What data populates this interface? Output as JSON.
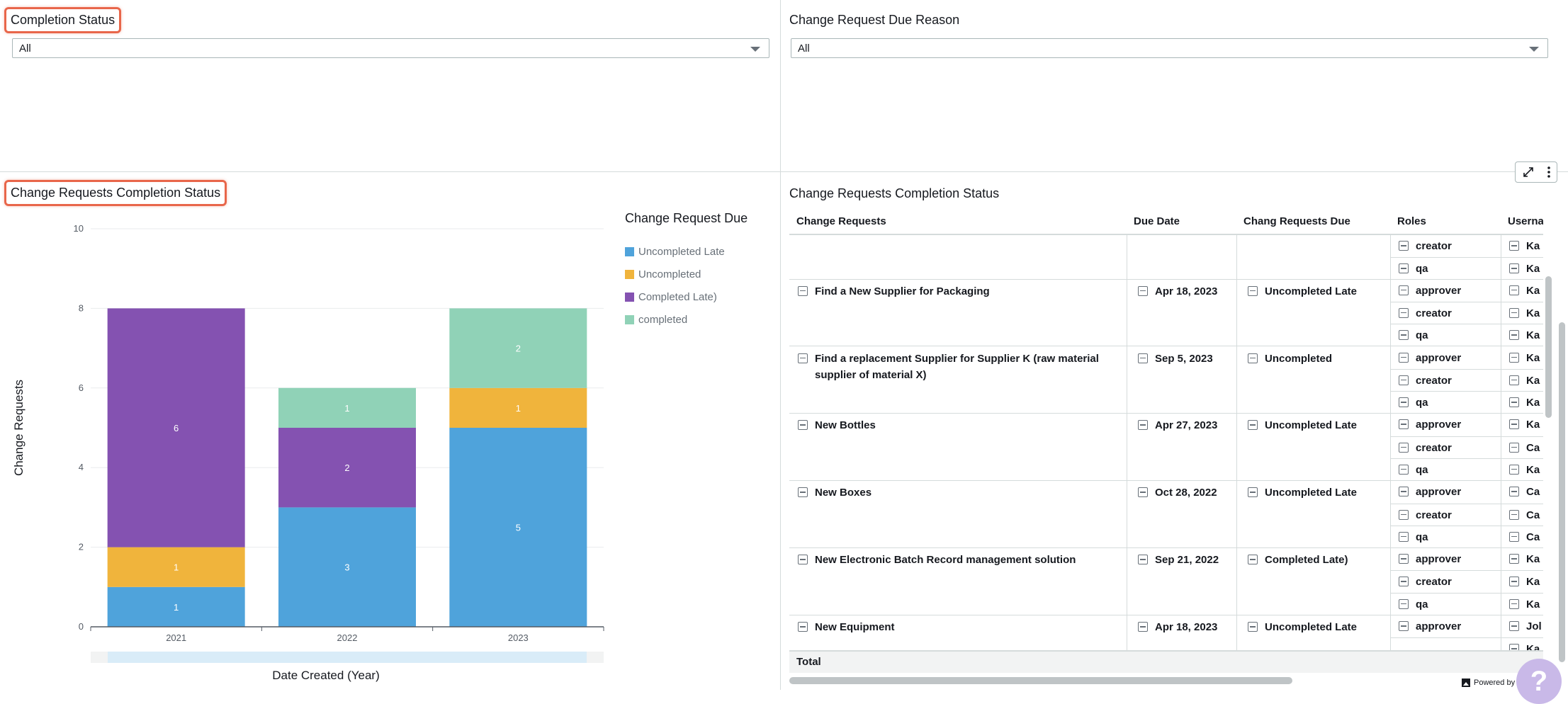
{
  "filters": {
    "completion_status": {
      "title": "Completion Status",
      "value": "All"
    },
    "due_reason": {
      "title": "Change Request Due Reason",
      "value": "All"
    }
  },
  "chart_panel": {
    "title": "Change Requests Completion Status"
  },
  "chart_data": {
    "type": "bar",
    "stacked": true,
    "categories": [
      "2021",
      "2022",
      "2023"
    ],
    "series": [
      {
        "name": "Uncompleted Late",
        "color": "#4fa3db",
        "values": [
          1,
          3,
          5
        ]
      },
      {
        "name": "Uncompleted",
        "color": "#f0b43c",
        "values": [
          1,
          0,
          1
        ]
      },
      {
        "name": "Completed Late)",
        "color": "#8452b1",
        "values": [
          6,
          2,
          0
        ]
      },
      {
        "name": "completed",
        "color": "#90d2b7",
        "values": [
          0,
          1,
          2
        ]
      }
    ],
    "xlabel": "Date Created (Year)",
    "ylabel": "Change Requests",
    "ylim": [
      0,
      10
    ],
    "yticks": [
      0,
      2,
      4,
      6,
      8,
      10
    ],
    "legend_title": "Change Request Due",
    "legend_position": "right",
    "grid": true
  },
  "table_panel": {
    "title": "Change Requests Completion Status",
    "columns": [
      "Change Requests",
      "Due Date",
      "Chang Requests Due",
      "Roles",
      "Userna"
    ],
    "groups": [
      {
        "request": "",
        "due_date": "",
        "due": "",
        "roles": [
          "creator",
          "qa"
        ],
        "users": [
          "Ka",
          "Ka"
        ]
      },
      {
        "request": "Find a New Supplier for Packaging",
        "due_date": "Apr 18, 2023",
        "due": "Uncompleted Late",
        "roles": [
          "approver",
          "creator",
          "qa"
        ],
        "users": [
          "Ka",
          "Ka",
          "Ka"
        ]
      },
      {
        "request": "Find a replacement Supplier for Supplier K (raw material supplier of material X)",
        "due_date": "Sep 5, 2023",
        "due": "Uncompleted",
        "roles": [
          "approver",
          "creator",
          "qa"
        ],
        "users": [
          "Ka",
          "Ka",
          "Ka"
        ]
      },
      {
        "request": "New Bottles",
        "due_date": "Apr 27, 2023",
        "due": "Uncompleted Late",
        "roles": [
          "approver",
          "creator",
          "qa"
        ],
        "users": [
          "Ka",
          "Ca",
          "Ka"
        ]
      },
      {
        "request": "New Boxes",
        "due_date": "Oct 28, 2022",
        "due": "Uncompleted Late",
        "roles": [
          "approver",
          "creator",
          "qa"
        ],
        "users": [
          "Ca",
          "Ca",
          "Ca"
        ]
      },
      {
        "request": "New Electronic Batch Record management solution",
        "due_date": "Sep 21, 2022",
        "due": "Completed Late)",
        "roles": [
          "approver",
          "creator",
          "qa"
        ],
        "users": [
          "Ka",
          "Ka",
          "Ka"
        ]
      },
      {
        "request": "New Equipment",
        "due_date": "Apr 18, 2023",
        "due": "Uncompleted Late",
        "roles": [
          "approver",
          "",
          ""
        ],
        "users": [
          "Jol",
          "Ka",
          ""
        ]
      }
    ],
    "footer": "Total"
  },
  "footer": {
    "powered_by": "Powered by",
    "help": "?"
  },
  "icons": {
    "expand": "expand-icon",
    "more": "more-vertical-icon",
    "collapse": "collapse-row-icon",
    "caret": "chevron-down-icon"
  }
}
